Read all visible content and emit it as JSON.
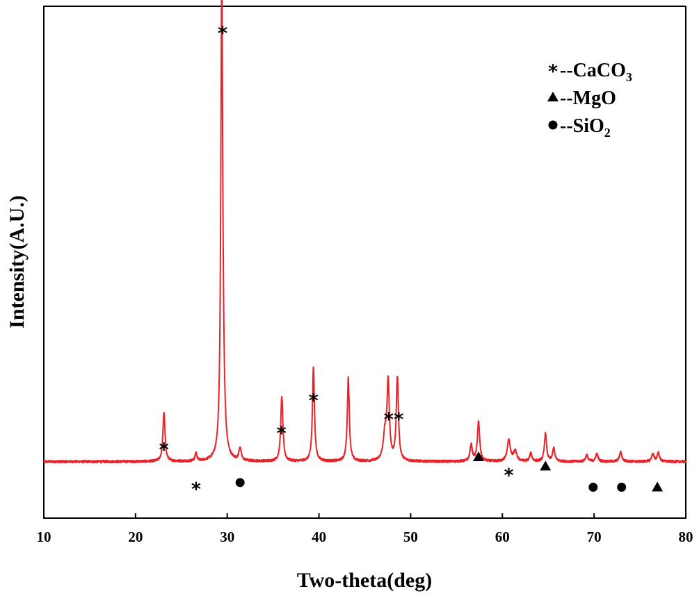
{
  "chart_data": {
    "type": "line",
    "xlabel": "Two-theta(deg)",
    "ylabel": "Intensity(A.U.)",
    "xlim": [
      10,
      80
    ],
    "ylim": [
      0,
      100
    ],
    "xticks": [
      "10",
      "20",
      "30",
      "40",
      "50",
      "60",
      "70",
      "80"
    ],
    "grid": false,
    "legend_position": "top-right",
    "line_color": "#e8232a",
    "baseline": 10.5,
    "noise_amplitude": 0.25,
    "series": [
      {
        "peaks": [
          {
            "x": 23.1,
            "height": 10.5,
            "width": 0.14
          },
          {
            "x": 26.6,
            "height": 1.8,
            "width": 0.12
          },
          {
            "x": 29.4,
            "height": 100.0,
            "width": 0.12
          },
          {
            "x": 29.55,
            "height": 10.0,
            "width": 0.2
          },
          {
            "x": 31.4,
            "height": 2.8,
            "width": 0.14
          },
          {
            "x": 35.95,
            "height": 14.0,
            "width": 0.14
          },
          {
            "x": 39.4,
            "height": 20.5,
            "width": 0.13
          },
          {
            "x": 43.2,
            "height": 18.0,
            "width": 0.13
          },
          {
            "x": 47.2,
            "height": 5.5,
            "width": 0.22
          },
          {
            "x": 47.55,
            "height": 16.5,
            "width": 0.15
          },
          {
            "x": 48.55,
            "height": 18.0,
            "width": 0.14
          },
          {
            "x": 56.6,
            "height": 3.5,
            "width": 0.15
          },
          {
            "x": 57.4,
            "height": 8.5,
            "width": 0.15
          },
          {
            "x": 60.7,
            "height": 4.6,
            "width": 0.2
          },
          {
            "x": 61.4,
            "height": 2.2,
            "width": 0.2
          },
          {
            "x": 63.1,
            "height": 1.7,
            "width": 0.15
          },
          {
            "x": 64.7,
            "height": 6.0,
            "width": 0.14
          },
          {
            "x": 65.6,
            "height": 2.8,
            "width": 0.15
          },
          {
            "x": 69.2,
            "height": 1.4,
            "width": 0.15
          },
          {
            "x": 70.3,
            "height": 1.7,
            "width": 0.15
          },
          {
            "x": 72.9,
            "height": 2.0,
            "width": 0.16
          },
          {
            "x": 76.4,
            "height": 1.6,
            "width": 0.15
          },
          {
            "x": 77.0,
            "height": 1.9,
            "width": 0.15
          }
        ]
      }
    ],
    "annotations": [
      {
        "symbol": "star",
        "x": 23.1,
        "y": 13.5
      },
      {
        "symbol": "star",
        "x": 26.6,
        "y": 5.0
      },
      {
        "symbol": "star",
        "x": 29.5,
        "y": 103.0
      },
      {
        "symbol": "circle",
        "x": 31.4,
        "y": 6.0
      },
      {
        "symbol": "star",
        "x": 35.9,
        "y": 17.0
      },
      {
        "symbol": "star",
        "x": 39.4,
        "y": 24.0
      },
      {
        "symbol": "star",
        "x": 47.6,
        "y": 20.0
      },
      {
        "symbol": "star",
        "x": 48.7,
        "y": 20.0
      },
      {
        "symbol": "triangle",
        "x": 57.4,
        "y": 11.5
      },
      {
        "symbol": "star",
        "x": 60.7,
        "y": 8.0
      },
      {
        "symbol": "triangle",
        "x": 64.7,
        "y": 9.5
      },
      {
        "symbol": "circle",
        "x": 69.9,
        "y": 5.0
      },
      {
        "symbol": "circle",
        "x": 73.0,
        "y": 5.0
      },
      {
        "symbol": "triangle",
        "x": 76.9,
        "y": 5.0
      }
    ],
    "legend": [
      {
        "symbol": "star",
        "text": "--CaCO",
        "sub": "3"
      },
      {
        "symbol": "triangle",
        "text": "--MgO",
        "sub": ""
      },
      {
        "symbol": "circle",
        "text": "--SiO",
        "sub": "2"
      }
    ]
  }
}
